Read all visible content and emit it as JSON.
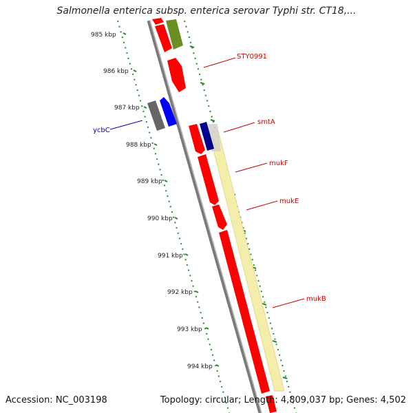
{
  "title": "Salmonella enterica subsp. enterica serovar Typhi str. CT18,...",
  "footer": {
    "accession": "Accession: NC_003198",
    "summary": "Topology: circular; Length: 4,809,037 bp; Genes: 4,502"
  },
  "colors": {
    "backbone": "#888888",
    "forward_gene": "#ff0000",
    "reverse_gene": "#0000ff",
    "other_gene": "#666666",
    "green_gene": "#6b8e23",
    "navy_gene": "#00008b",
    "operon_band": "#f5eeaa",
    "tick_green": "#228b22",
    "red_label": "#cc0000",
    "blue_label": "#0000cc"
  },
  "scale_labels": [
    "985 kbp",
    "986 kbp",
    "987 kbp",
    "988 kbp",
    "989 kbp",
    "990 kbp",
    "991 kbp",
    "992 kbp",
    "993 kbp",
    "994 kbp"
  ],
  "gene_labels": [
    {
      "name": "STY0991",
      "strand": "forward"
    },
    {
      "name": "smtA",
      "strand": "forward"
    },
    {
      "name": "mukF",
      "strand": "forward"
    },
    {
      "name": "mukE",
      "strand": "forward"
    },
    {
      "name": "mukB",
      "strand": "forward"
    },
    {
      "name": "ycbC",
      "strand": "reverse"
    }
  ]
}
